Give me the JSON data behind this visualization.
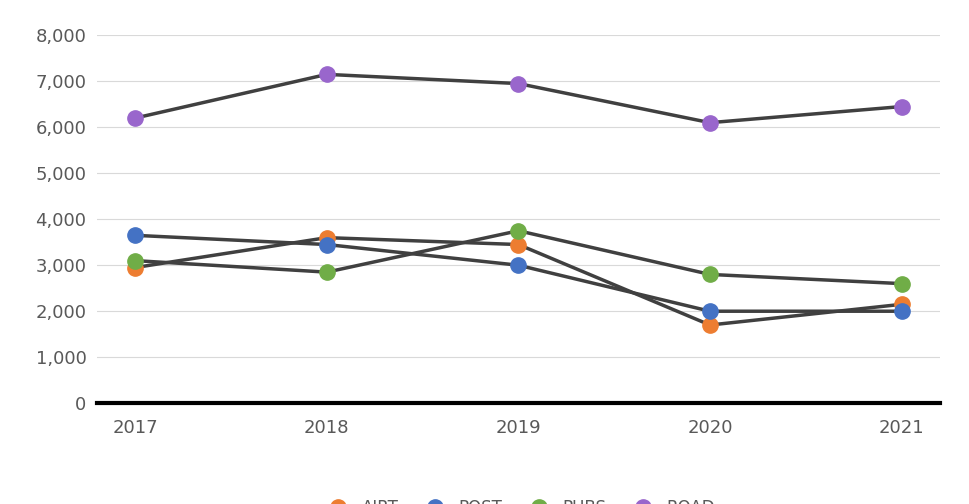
{
  "years": [
    2017,
    2018,
    2019,
    2020,
    2021
  ],
  "series": {
    "AIRT": [
      2950,
      3600,
      3450,
      1700,
      2150
    ],
    "POST": [
      3650,
      3450,
      3000,
      2000,
      2000
    ],
    "PUBS": [
      3100,
      2850,
      3750,
      2800,
      2600
    ],
    "ROAD": [
      6200,
      7150,
      6950,
      6100,
      6450
    ]
  },
  "colors": {
    "AIRT": "#ED7D31",
    "POST": "#4472C4",
    "PUBS": "#70AD47",
    "ROAD": "#9966CC"
  },
  "line_color": "#404040",
  "marker_size": 11,
  "line_width": 2.5,
  "ylim": [
    0,
    8000
  ],
  "yticks": [
    0,
    1000,
    2000,
    3000,
    4000,
    5000,
    6000,
    7000,
    8000
  ],
  "background_color": "#FFFFFF",
  "grid_color": "#D9D9D9",
  "tick_fontsize": 13,
  "legend_fontsize": 12
}
